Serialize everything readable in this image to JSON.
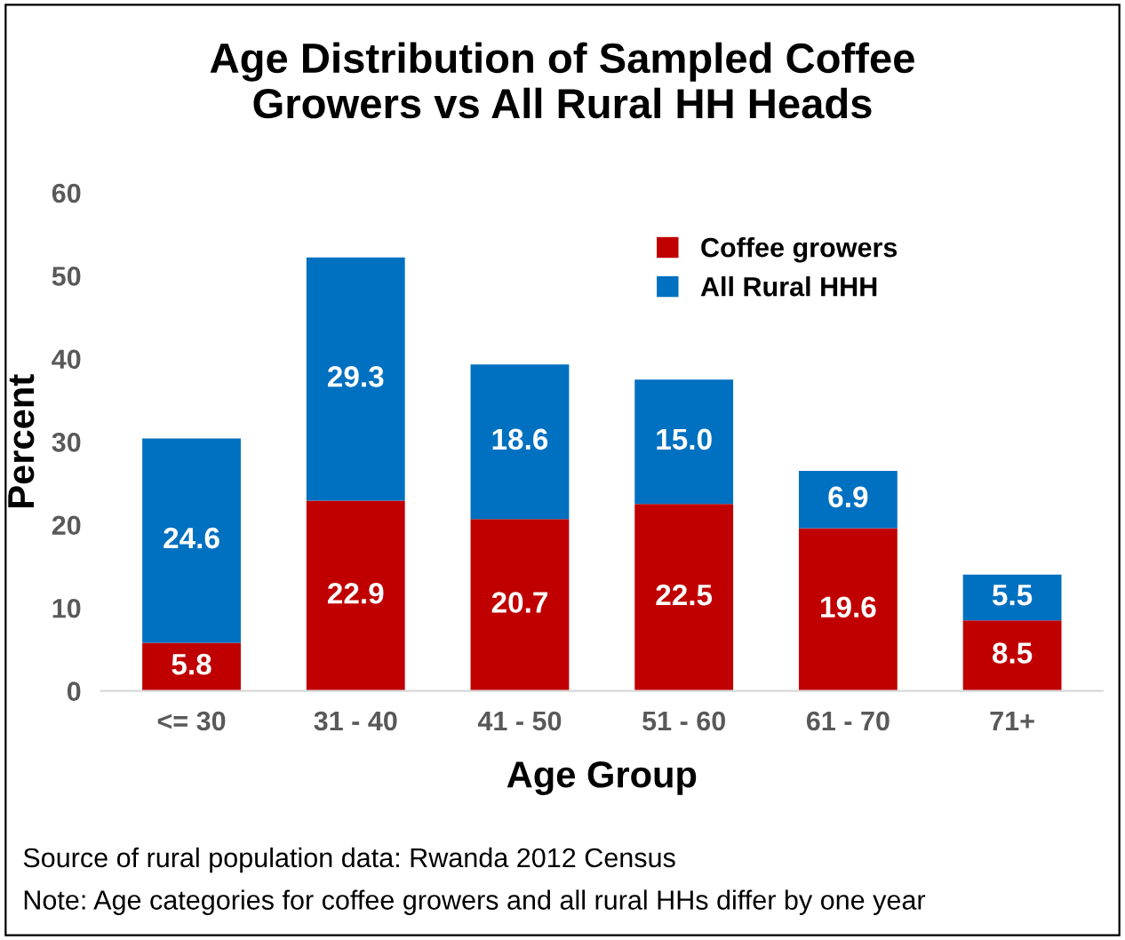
{
  "chart_data": {
    "type": "bar",
    "stacked": true,
    "title": "Age Distribution of Sampled Coffee\nGrowers vs All Rural HH Heads",
    "xlabel": "Age Group",
    "ylabel": "Percent",
    "categories": [
      "<= 30",
      "31 - 40",
      "41 - 50",
      "51 - 60",
      "61 - 70",
      "71+"
    ],
    "series": [
      {
        "name": "Coffee growers",
        "color": "#c00000",
        "values": [
          5.8,
          22.9,
          20.7,
          22.5,
          19.6,
          8.5
        ],
        "value_labels": [
          "5.8",
          "22.9",
          "20.7",
          "22.5",
          "19.6",
          "8.5"
        ]
      },
      {
        "name": "All Rural HHH",
        "color": "#0070c0",
        "values": [
          24.6,
          29.3,
          18.6,
          15.0,
          6.9,
          5.5
        ],
        "value_labels": [
          "24.6",
          "29.3",
          "18.6",
          "15.0",
          "6.9",
          "5.5"
        ]
      }
    ],
    "ylim": [
      0,
      60
    ],
    "yticks": [
      0,
      10,
      20,
      30,
      40,
      50,
      60
    ],
    "grid": false,
    "legend": "top right",
    "annotations": [
      "Source of rural population data: Rwanda 2012 Census",
      "Note: Age categories for coffee growers and all rural HHs differ by one year"
    ]
  }
}
